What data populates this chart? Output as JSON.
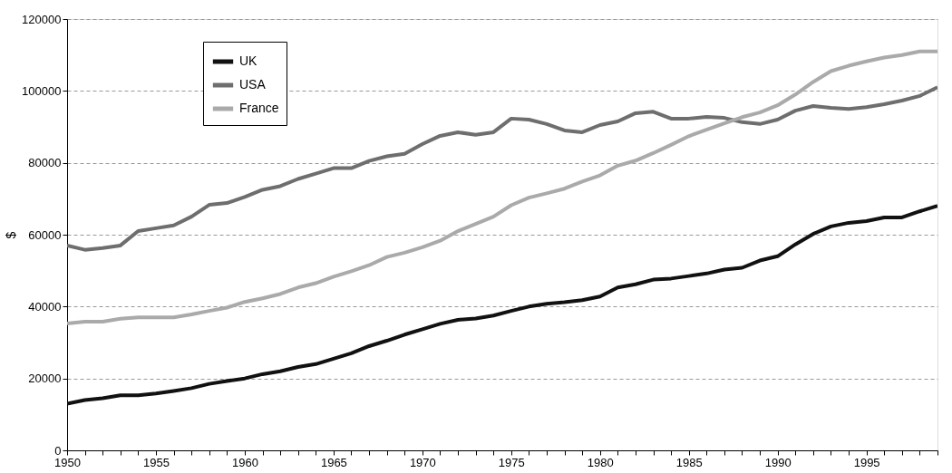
{
  "chart_data": {
    "type": "line",
    "ylabel": "$",
    "x": [
      1950,
      1951,
      1952,
      1953,
      1954,
      1955,
      1956,
      1957,
      1958,
      1959,
      1960,
      1961,
      1962,
      1963,
      1964,
      1965,
      1966,
      1967,
      1968,
      1969,
      1970,
      1971,
      1972,
      1973,
      1974,
      1975,
      1976,
      1977,
      1978,
      1979,
      1980,
      1981,
      1982,
      1983,
      1984,
      1985,
      1986,
      1987,
      1988,
      1989,
      1990,
      1991,
      1992,
      1993,
      1994,
      1995,
      1996,
      1997,
      1998,
      1999
    ],
    "series": [
      {
        "name": "UK",
        "color": "#111111",
        "values": [
          13000,
          14000,
          14500,
          15300,
          15300,
          15800,
          16500,
          17300,
          18500,
          19300,
          20000,
          21200,
          22000,
          23200,
          24000,
          25500,
          27000,
          29000,
          30500,
          32200,
          33700,
          35200,
          36300,
          36700,
          37500,
          38800,
          40000,
          40800,
          41200,
          41800,
          42800,
          45300,
          46200,
          47500,
          47800,
          48500,
          49200,
          50300,
          50800,
          52800,
          54000,
          57300,
          60200,
          62300,
          63300,
          63800,
          64800,
          64800,
          66500,
          68000
        ]
      },
      {
        "name": "USA",
        "color": "#6e6e6e",
        "values": [
          57000,
          55800,
          56300,
          57000,
          61000,
          61800,
          62600,
          65000,
          68300,
          68800,
          70500,
          72500,
          73500,
          75500,
          77000,
          78500,
          78500,
          80500,
          81800,
          82500,
          85200,
          87500,
          88500,
          87800,
          88500,
          92300,
          92000,
          90800,
          89000,
          88500,
          90500,
          91500,
          93800,
          94200,
          92300,
          92300,
          92800,
          92500,
          91300,
          90800,
          92000,
          94500,
          95800,
          95300,
          95000,
          95500,
          96300,
          97300,
          98600,
          101000
        ]
      },
      {
        "name": "France",
        "color": "#aaaaaa",
        "values": [
          35300,
          35800,
          35800,
          36600,
          37000,
          37000,
          37000,
          37800,
          38800,
          39700,
          41300,
          42300,
          43500,
          45300,
          46500,
          48300,
          49800,
          51500,
          53800,
          55000,
          56500,
          58300,
          61000,
          63000,
          65000,
          68200,
          70300,
          71500,
          72800,
          74800,
          76500,
          79200,
          80600,
          82700,
          85000,
          87400,
          89200,
          91000,
          92700,
          94000,
          96000,
          99000,
          102500,
          105500,
          107000,
          108200,
          109300,
          110000,
          111000,
          111000
        ]
      }
    ],
    "xlim": [
      1950,
      1999
    ],
    "xticks": [
      1950,
      {
        "value": 1951,
        "label": null
      },
      {
        "value": 1952,
        "label": null
      },
      {
        "value": 1953,
        "label": null
      },
      {
        "value": 1954,
        "label": null
      },
      1955,
      {
        "value": 1956,
        "label": null
      },
      {
        "value": 1957,
        "label": null
      },
      {
        "value": 1958,
        "label": null
      },
      {
        "value": 1959,
        "label": null
      },
      1960,
      {
        "value": 1961,
        "label": null
      },
      {
        "value": 1962,
        "label": null
      },
      {
        "value": 1963,
        "label": null
      },
      {
        "value": 1964,
        "label": null
      },
      1965,
      {
        "value": 1966,
        "label": null
      },
      {
        "value": 1967,
        "label": null
      },
      {
        "value": 1968,
        "label": null
      },
      {
        "value": 1969,
        "label": null
      },
      1970,
      {
        "value": 1971,
        "label": null
      },
      {
        "value": 1972,
        "label": null
      },
      {
        "value": 1973,
        "label": null
      },
      {
        "value": 1974,
        "label": null
      },
      1975,
      {
        "value": 1976,
        "label": null
      },
      {
        "value": 1977,
        "label": null
      },
      {
        "value": 1978,
        "label": null
      },
      {
        "value": 1979,
        "label": null
      },
      1980,
      {
        "value": 1981,
        "label": null
      },
      {
        "value": 1982,
        "label": null
      },
      {
        "value": 1983,
        "label": null
      },
      {
        "value": 1984,
        "label": null
      },
      1985,
      {
        "value": 1986,
        "label": null
      },
      {
        "value": 1987,
        "label": null
      },
      {
        "value": 1988,
        "label": null
      },
      {
        "value": 1989,
        "label": null
      },
      1990,
      {
        "value": 1991,
        "label": null
      },
      {
        "value": 1992,
        "label": null
      },
      {
        "value": 1993,
        "label": null
      },
      {
        "value": 1994,
        "label": null
      },
      1995,
      {
        "value": 1996,
        "label": null
      },
      {
        "value": 1997,
        "label": null
      },
      {
        "value": 1998,
        "label": null
      },
      {
        "value": 1999,
        "label": null
      }
    ],
    "ylim": [
      0,
      120000
    ],
    "yticks": [
      0,
      20000,
      40000,
      60000,
      80000,
      100000,
      120000
    ],
    "grid": "y",
    "legend": "top left",
    "line_style": "solid",
    "marker": "none"
  }
}
